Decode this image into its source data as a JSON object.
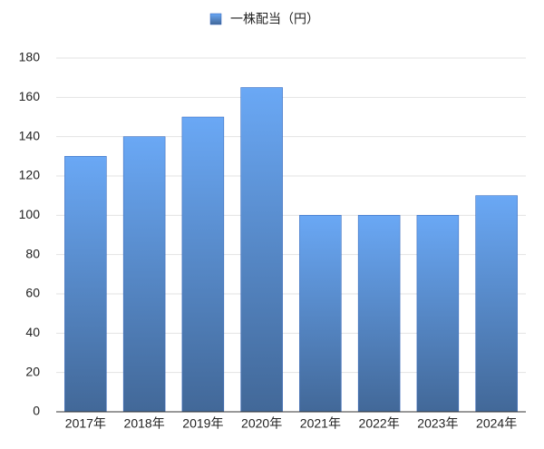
{
  "chart_data": {
    "type": "bar",
    "series_name": "一株配当（円）",
    "categories": [
      "2017年",
      "2018年",
      "2019年",
      "2020年",
      "2021年",
      "2022年",
      "2023年",
      "2024年"
    ],
    "values": [
      130,
      140,
      150,
      165,
      100,
      100,
      100,
      110
    ],
    "color": "#6aa8f5",
    "ylim": [
      0,
      180
    ],
    "yticks": [
      0,
      20,
      40,
      60,
      80,
      100,
      120,
      140,
      160,
      180
    ],
    "grid": true
  }
}
